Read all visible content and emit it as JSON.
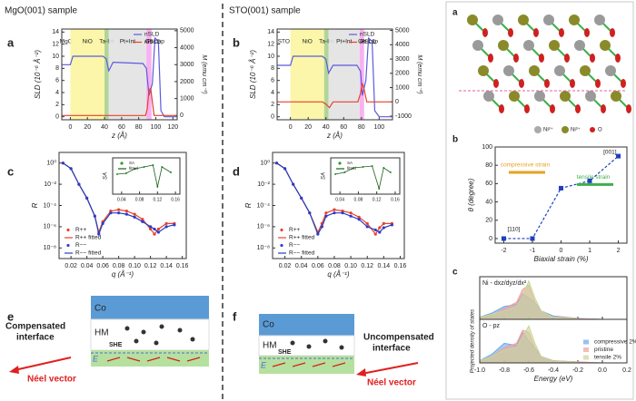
{
  "headers": [
    "MgO(001) sample",
    "STO(001) sample"
  ],
  "panel_labels": [
    "a",
    "b",
    "c",
    "d",
    "e",
    "f"
  ],
  "right_panel_labels": [
    "a",
    "b",
    "c"
  ],
  "crystal_legend": [
    "Ni²⁺",
    "Ni³⁺",
    "O"
  ],
  "schematic_e": {
    "layers": [
      "Co",
      "HM"
    ],
    "effect": "SHE",
    "field": "E",
    "interface": [
      "Compensated",
      "interface"
    ],
    "vector": "Néel vector"
  },
  "schematic_f": {
    "layers": [
      "Co",
      "HM"
    ],
    "effect": "SHE",
    "field": "E",
    "interface": [
      "Uncompensated",
      "interface"
    ],
    "vector": "Néel vector"
  },
  "chart_data": [
    {
      "type": "line",
      "xlabel": "z (Å)",
      "ylabel": "SLD (10⁻⁶ Å⁻²)",
      "y2label": "M (emu cm⁻³)",
      "xlim": [
        -10,
        125
      ],
      "xticks": [
        0,
        20,
        40,
        60,
        80,
        100,
        120
      ],
      "ylim": [
        -0.5,
        14.5
      ],
      "yticks": [
        0,
        2,
        4,
        6,
        8,
        10,
        12,
        14
      ],
      "y2lim": [
        -250,
        5100
      ],
      "y2ticks": [
        0,
        1000,
        2000,
        3000,
        4000,
        5000
      ],
      "legend": "upper right",
      "regions": [
        {
          "name": "MgO",
          "from": -10,
          "to": 0,
          "color": "none"
        },
        {
          "name": "NiO",
          "from": 0,
          "to": 40,
          "color": "#fbf5a0"
        },
        {
          "name": "Ta-Int",
          "from": 40,
          "to": 45,
          "color": "#a8d08d"
        },
        {
          "name": "Pt+Int",
          "from": 45,
          "to": 89,
          "color": "#e2e2e2"
        },
        {
          "name": "Co",
          "from": 89,
          "to": 95,
          "color": "#f7a8f0"
        },
        {
          "name": "Pt-cap",
          "from": 95,
          "to": 105,
          "color": "none"
        }
      ],
      "series": [
        {
          "name": "nSLD",
          "color": "#5b5bdc",
          "mode": "lines",
          "axis": "y",
          "x": [
            -10,
            0,
            3,
            38,
            42,
            45,
            50,
            85,
            89,
            92,
            96,
            99,
            103,
            106,
            110,
            125
          ],
          "values": [
            8.6,
            8.6,
            10,
            10,
            9.6,
            7.6,
            9,
            8.8,
            8,
            3.5,
            5.5,
            13,
            12.5,
            1,
            0,
            0
          ]
        },
        {
          "name": "mSLD",
          "color": "#e8412c",
          "mode": "lines",
          "axis": "y2",
          "x": [
            -10,
            88,
            90,
            92,
            94,
            96,
            98,
            125
          ],
          "values": [
            0,
            0,
            400,
            1500,
            1600,
            800,
            0,
            0
          ]
        }
      ]
    },
    {
      "type": "line",
      "xlabel": "z (Å)",
      "ylabel": "SLD (10⁻⁶ Å⁻²)",
      "y2label": "M (emu cm⁻³)",
      "xlim": [
        -15,
        115
      ],
      "xticks": [
        0,
        20,
        40,
        60,
        80,
        100
      ],
      "ylim": [
        -0.5,
        14.5
      ],
      "yticks": [
        0,
        2,
        4,
        6,
        8,
        10,
        12,
        14
      ],
      "y2lim": [
        -1250,
        5100
      ],
      "y2ticks": [
        -1000,
        0,
        1000,
        2000,
        3000,
        4000,
        5000
      ],
      "legend": "upper right",
      "regions": [
        {
          "name": "STO",
          "from": -15,
          "to": 0,
          "color": "none"
        },
        {
          "name": "NiO",
          "from": 0,
          "to": 38,
          "color": "#fbf5a0"
        },
        {
          "name": "Ta-Int",
          "from": 38,
          "to": 43,
          "color": "#a8d08d"
        },
        {
          "name": "Pt+Int",
          "from": 43,
          "to": 78,
          "color": "#e2e2e2"
        },
        {
          "name": "Co",
          "from": 78,
          "to": 83,
          "color": "#f7a8f0"
        },
        {
          "name": "Pt-cap",
          "from": 83,
          "to": 95,
          "color": "none"
        }
      ],
      "series": [
        {
          "name": "nSLD",
          "color": "#5b5bdc",
          "mode": "lines",
          "axis": "y",
          "x": [
            -15,
            0,
            3,
            36,
            40,
            43,
            48,
            75,
            79,
            81,
            85,
            88,
            92,
            95,
            100,
            115
          ],
          "values": [
            8.5,
            8.5,
            10,
            10,
            9.5,
            7.2,
            8.5,
            8.5,
            7.5,
            3.5,
            6,
            13,
            12.5,
            1,
            0,
            0
          ]
        },
        {
          "name": "mSLD",
          "color": "#e8412c",
          "mode": "lines",
          "axis": "y2",
          "x": [
            -15,
            36,
            40,
            44,
            48,
            76,
            79,
            81,
            83,
            86,
            115
          ],
          "values": [
            0,
            0,
            -150,
            -400,
            0,
            0,
            600,
            1300,
            900,
            0,
            0
          ]
        }
      ]
    },
    {
      "type": "scatter",
      "xlabel": "q (Å⁻¹)",
      "ylabel": "R",
      "ylog": true,
      "xlim": [
        0.005,
        0.165
      ],
      "xticks": [
        0.02,
        0.04,
        0.06,
        0.08,
        {
          "value": 0.1,
          "label": "0.10"
        },
        0.12,
        0.14,
        0.16
      ],
      "ylim": [
        1e-09,
        10
      ],
      "yticks": [
        {
          "value": 1,
          "label": "10⁰"
        },
        {
          "value": 0.01,
          "label": "10⁻²"
        },
        {
          "value": 0.0001,
          "label": "10⁻⁴"
        },
        {
          "value": 1e-06,
          "label": "10⁻⁶"
        },
        {
          "value": 1e-08,
          "label": "10⁻⁸"
        }
      ],
      "legend": "lower left",
      "x": [
        0.01,
        0.02,
        0.03,
        0.04,
        0.05,
        0.055,
        0.06,
        0.07,
        0.08,
        0.09,
        0.1,
        0.11,
        0.12,
        0.125,
        0.13,
        0.14,
        0.15
      ],
      "series": [
        {
          "name": "R++",
          "color": "#e8412c",
          "mode": "markers",
          "values": [
            1,
            0.3,
            0.01,
            0.0005,
            1e-05,
            3e-07,
            3e-06,
            3e-05,
            4e-05,
            3e-05,
            1.5e-05,
            5e-06,
            6e-07,
            2e-07,
            6e-07,
            2e-06,
            2e-06
          ]
        },
        {
          "name": "R++ fitted",
          "color": "#e8412c",
          "mode": "lines",
          "values": [
            1,
            0.3,
            0.01,
            0.0005,
            1e-05,
            3e-07,
            3e-06,
            3e-05,
            4e-05,
            3e-05,
            1.5e-05,
            5e-06,
            6e-07,
            2e-07,
            6e-07,
            2e-06,
            2e-06
          ]
        },
        {
          "name": "R−−",
          "color": "#3a3ad8",
          "mode": "markers",
          "values": [
            1,
            0.3,
            0.01,
            0.0005,
            1e-05,
            2e-07,
            2e-06,
            2e-05,
            2e-05,
            1.5e-05,
            8e-06,
            3e-06,
            1e-06,
            6e-07,
            3e-07,
            1e-06,
            1.5e-06
          ]
        },
        {
          "name": "R−− fitted",
          "color": "#1f3fbf",
          "mode": "lines",
          "values": [
            1,
            0.3,
            0.01,
            0.0005,
            1e-05,
            2e-07,
            2e-06,
            2e-05,
            2e-05,
            1.5e-05,
            8e-06,
            3e-06,
            1e-06,
            6e-07,
            3e-07,
            1e-06,
            1.5e-06
          ]
        }
      ]
    },
    {
      "type": "scatter",
      "xlabel": "q (Å⁻¹)",
      "ylabel": "R",
      "ylog": true,
      "xlim": [
        0.005,
        0.165
      ],
      "xticks": [
        0.02,
        0.04,
        0.06,
        0.08,
        {
          "value": 0.1,
          "label": "0.10"
        },
        0.12,
        0.14,
        0.16
      ],
      "ylim": [
        1e-09,
        10
      ],
      "yticks": [
        {
          "value": 1,
          "label": "10⁰"
        },
        {
          "value": 0.01,
          "label": "10⁻²"
        },
        {
          "value": 0.0001,
          "label": "10⁻⁴"
        },
        {
          "value": 1e-06,
          "label": "10⁻⁶"
        },
        {
          "value": 1e-08,
          "label": "10⁻⁸"
        }
      ],
      "legend": "lower left",
      "x": [
        0.01,
        0.02,
        0.03,
        0.04,
        0.05,
        0.06,
        0.065,
        0.07,
        0.08,
        0.09,
        0.1,
        0.11,
        0.12,
        0.13,
        0.135,
        0.14,
        0.15
      ],
      "series": [
        {
          "name": "R++",
          "color": "#e8412c",
          "mode": "markers",
          "values": [
            1,
            0.3,
            0.01,
            0.0005,
            2e-05,
            3e-07,
            2e-06,
            2e-05,
            4e-05,
            3e-05,
            2e-05,
            8e-06,
            2e-06,
            2e-07,
            8e-07,
            2e-06,
            2e-06
          ]
        },
        {
          "name": "R++ fitted",
          "color": "#e8412c",
          "mode": "lines",
          "values": [
            1,
            0.3,
            0.01,
            0.0005,
            2e-05,
            3e-07,
            2e-06,
            2e-05,
            4e-05,
            3e-05,
            2e-05,
            8e-06,
            2e-06,
            2e-07,
            8e-07,
            2e-06,
            2e-06
          ]
        },
        {
          "name": "R−−",
          "color": "#3a3ad8",
          "mode": "markers",
          "values": [
            1,
            0.3,
            0.01,
            0.0005,
            2e-05,
            2e-07,
            1e-06,
            1e-05,
            2e-05,
            2e-05,
            1e-05,
            5e-06,
            1e-06,
            5e-07,
            3e-07,
            8e-07,
            1.5e-06
          ]
        },
        {
          "name": "R−− fitted",
          "color": "#1f3fbf",
          "mode": "lines",
          "values": [
            1,
            0.3,
            0.01,
            0.0005,
            2e-05,
            2e-07,
            1e-06,
            1e-05,
            2e-05,
            2e-05,
            1e-05,
            5e-06,
            1e-06,
            5e-07,
            3e-07,
            8e-07,
            1.5e-06
          ]
        }
      ]
    },
    {
      "type": "scatter",
      "ylabel": "SA",
      "xlim": [
        0.02,
        0.17
      ],
      "xticks": [
        0.04,
        0.08,
        0.12,
        0.16
      ],
      "ylim": [
        -1,
        1
      ],
      "legend": "upper left",
      "x": [
        0.03,
        0.05,
        0.07,
        0.09,
        0.11,
        0.12,
        0.13,
        0.15
      ],
      "series": [
        {
          "name": "SA",
          "color": "#2e9c2e",
          "mode": "markers",
          "values": [
            0.1,
            0.15,
            0.4,
            0.5,
            0.6,
            -0.6,
            0.5,
            0.2
          ]
        },
        {
          "name": "fitted",
          "color": "#1b5e1b",
          "mode": "lines",
          "values": [
            0.1,
            0.15,
            0.4,
            0.5,
            0.6,
            -0.6,
            0.5,
            0.2
          ]
        }
      ]
    },
    {
      "type": "scatter",
      "ylabel": "SA",
      "xlim": [
        0.02,
        0.17
      ],
      "xticks": [
        0.04,
        0.08,
        0.12,
        0.16
      ],
      "ylim": [
        -1,
        1
      ],
      "legend": "upper left",
      "x": [
        0.03,
        0.05,
        0.07,
        0.09,
        0.11,
        0.125,
        0.135,
        0.15
      ],
      "series": [
        {
          "name": "SA",
          "color": "#2e9c2e",
          "mode": "markers",
          "values": [
            0.1,
            0.2,
            0.45,
            0.5,
            0.55,
            -0.7,
            0.45,
            0.2
          ]
        },
        {
          "name": "fitted",
          "color": "#1b5e1b",
          "mode": "lines",
          "values": [
            0.1,
            0.2,
            0.45,
            0.5,
            0.55,
            -0.7,
            0.45,
            0.2
          ]
        }
      ]
    },
    {
      "type": "line",
      "xlabel": "Biaxial strain (%)",
      "ylabel": "θ (degree)",
      "xlim": [
        -2.3,
        2.3
      ],
      "xticks": [
        -2,
        -1,
        0,
        1,
        2
      ],
      "ylim": [
        -5,
        100
      ],
      "yticks": [
        0,
        20,
        40,
        60,
        80,
        100
      ],
      "annotations": [
        "[110]",
        "[001]",
        "compressive strain",
        "tensile strain"
      ],
      "x": [
        -2,
        -1,
        0,
        1,
        2
      ],
      "series": [
        {
          "color": "#1f3fbf",
          "mode": "markers+lines",
          "dash": true,
          "values": [
            0,
            0,
            55,
            63,
            90
          ]
        }
      ]
    },
    {
      "type": "area",
      "title": "Ni - dxz/dyz/dx²",
      "ylabel": "Projected density of states",
      "xlim": [
        -1,
        0.2
      ],
      "xticks": [
        {
          "value": -1,
          "label": "-1.0"
        },
        -0.8,
        -0.6,
        -0.4,
        -0.2,
        {
          "value": 0,
          "label": "0.0"
        },
        0.2
      ],
      "ylim": [
        0,
        1
      ],
      "x": [
        -1,
        -0.9,
        -0.8,
        -0.7,
        -0.65,
        -0.6,
        -0.55,
        -0.5,
        -0.4,
        -0.2,
        0
      ],
      "series": [
        {
          "color": "#6aa9e8",
          "values": [
            0.05,
            0.15,
            0.3,
            0.35,
            0.6,
            0.5,
            0.4,
            0.2,
            0.08,
            0.02,
            0
          ]
        },
        {
          "color": "#f0a0a0",
          "values": [
            0.05,
            0.1,
            0.25,
            0.4,
            0.7,
            0.8,
            0.4,
            0.15,
            0.06,
            0.02,
            0
          ]
        },
        {
          "color": "#c8d69a",
          "values": [
            0.05,
            0.12,
            0.2,
            0.3,
            0.55,
            0.9,
            0.5,
            0.2,
            0.05,
            0.01,
            0
          ]
        }
      ]
    },
    {
      "type": "area",
      "title": "O - pz",
      "xlabel": "Energy (eV)",
      "xlim": [
        -1,
        0.2
      ],
      "xticks": [
        {
          "value": -1,
          "label": "-1.0"
        },
        -0.8,
        -0.6,
        -0.4,
        -0.2,
        {
          "value": 0,
          "label": "0.0"
        },
        0.2
      ],
      "ylim": [
        0,
        1
      ],
      "legend": "lower right",
      "x": [
        -1,
        -0.9,
        -0.8,
        -0.7,
        -0.65,
        -0.6,
        -0.55,
        -0.5,
        -0.4,
        -0.2,
        0
      ],
      "series": [
        {
          "name": "compressive 2%",
          "color": "#6aa9e8",
          "values": [
            0.05,
            0.2,
            0.45,
            0.4,
            0.7,
            0.5,
            0.35,
            0.15,
            0.05,
            0.02,
            0
          ]
        },
        {
          "name": "pristine",
          "color": "#f0a0a0",
          "values": [
            0.05,
            0.15,
            0.35,
            0.45,
            0.75,
            0.7,
            0.35,
            0.12,
            0.05,
            0.02,
            0
          ]
        },
        {
          "name": "tensile 2%",
          "color": "#c8d69a",
          "values": [
            0.05,
            0.15,
            0.3,
            0.35,
            0.6,
            0.85,
            0.45,
            0.15,
            0.04,
            0.01,
            0
          ]
        }
      ]
    }
  ]
}
